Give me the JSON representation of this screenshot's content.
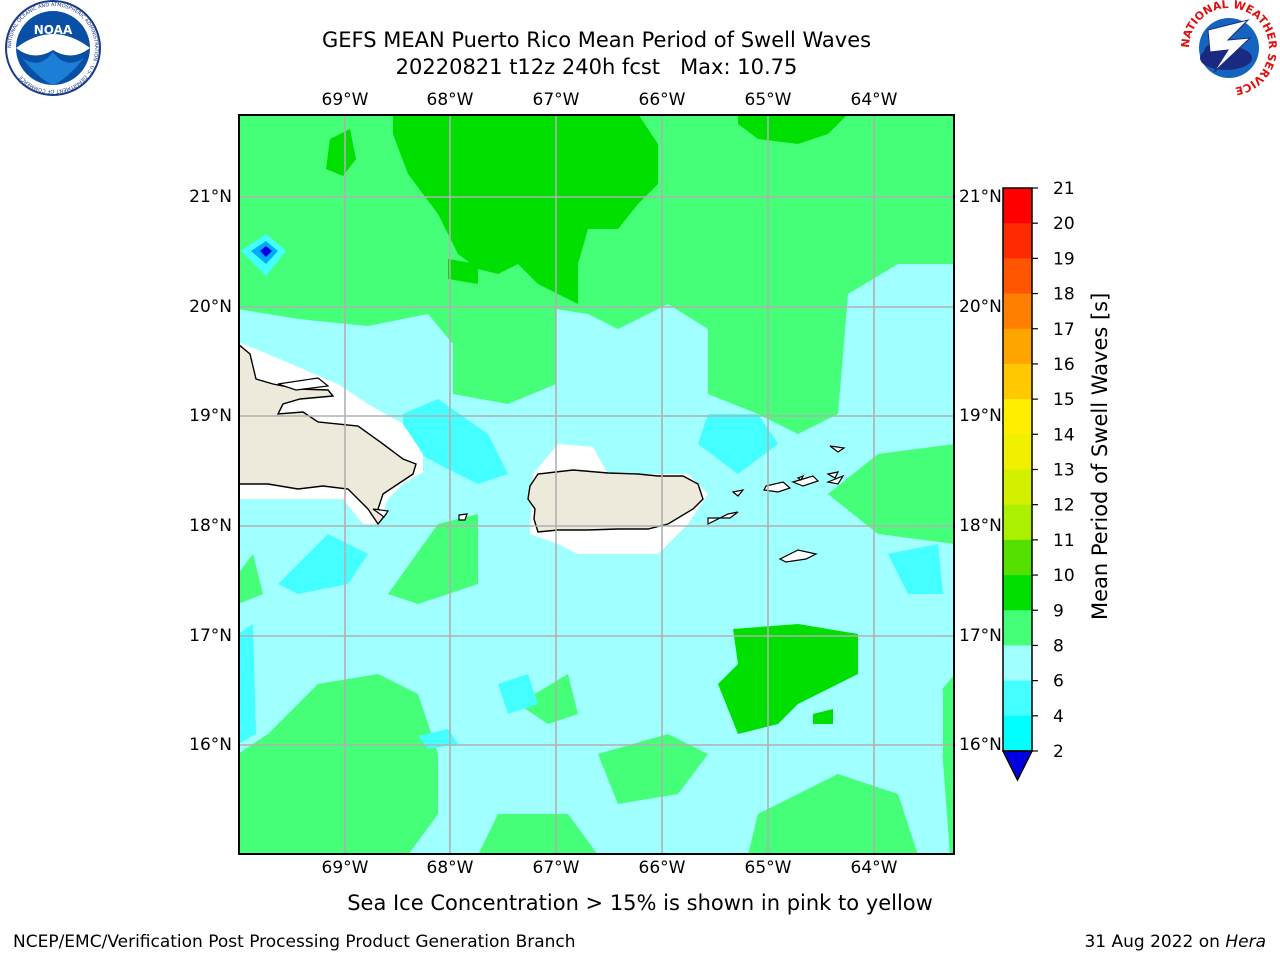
{
  "title_line1": "GEFS MEAN Puerto Rico Mean Period of Swell Waves",
  "title_line2": "20220821 t12z 240h fcst   Max: 10.75",
  "logos": {
    "noaa_text": "NOAA",
    "noaa_ring": "NATIONAL OCEANIC AND ATMOSPHERIC ADMINISTRATION · U.S. DEPARTMENT OF COMMERCE",
    "nws_ring": "NATIONAL WEATHER SERVICE"
  },
  "lon_labels": [
    "69°W",
    "68°W",
    "67°W",
    "66°W",
    "65°W",
    "64°W"
  ],
  "lat_labels": [
    "21°N",
    "20°N",
    "19°N",
    "18°N",
    "17°N",
    "16°N"
  ],
  "colorbar": {
    "label": "Mean Period of Swell Waves [s]",
    "ticks": [
      "21",
      "20",
      "19",
      "18",
      "17",
      "16",
      "15",
      "14",
      "13",
      "12",
      "11",
      "10",
      "9",
      "8",
      "6",
      "4",
      "2"
    ],
    "colors": [
      "#ff0000",
      "#ff2a00",
      "#ff5500",
      "#ff7f00",
      "#ffa500",
      "#ffc800",
      "#ffee00",
      "#f0f000",
      "#d2f000",
      "#aaf000",
      "#55e000",
      "#00e000",
      "#44ff77",
      "#a0ffff",
      "#44ffff",
      "#00ffff",
      "#0088ff",
      "#0000e0"
    ]
  },
  "caption": "Sea Ice Concentration > 15% is shown in pink to yellow",
  "footer_left": "NCEP/EMC/Verification Post Processing Product Generation Branch",
  "footer_right_date": "31 Aug 2022 on ",
  "footer_right_host": "Hera",
  "colors": {
    "fill_9_10": "#44ff77",
    "fill_10_11": "#00e000",
    "fill_8_9": "#a0ffff",
    "fill_6_8": "#44ffff",
    "land": "#eeeadb",
    "grid": "#b0b0b0"
  }
}
